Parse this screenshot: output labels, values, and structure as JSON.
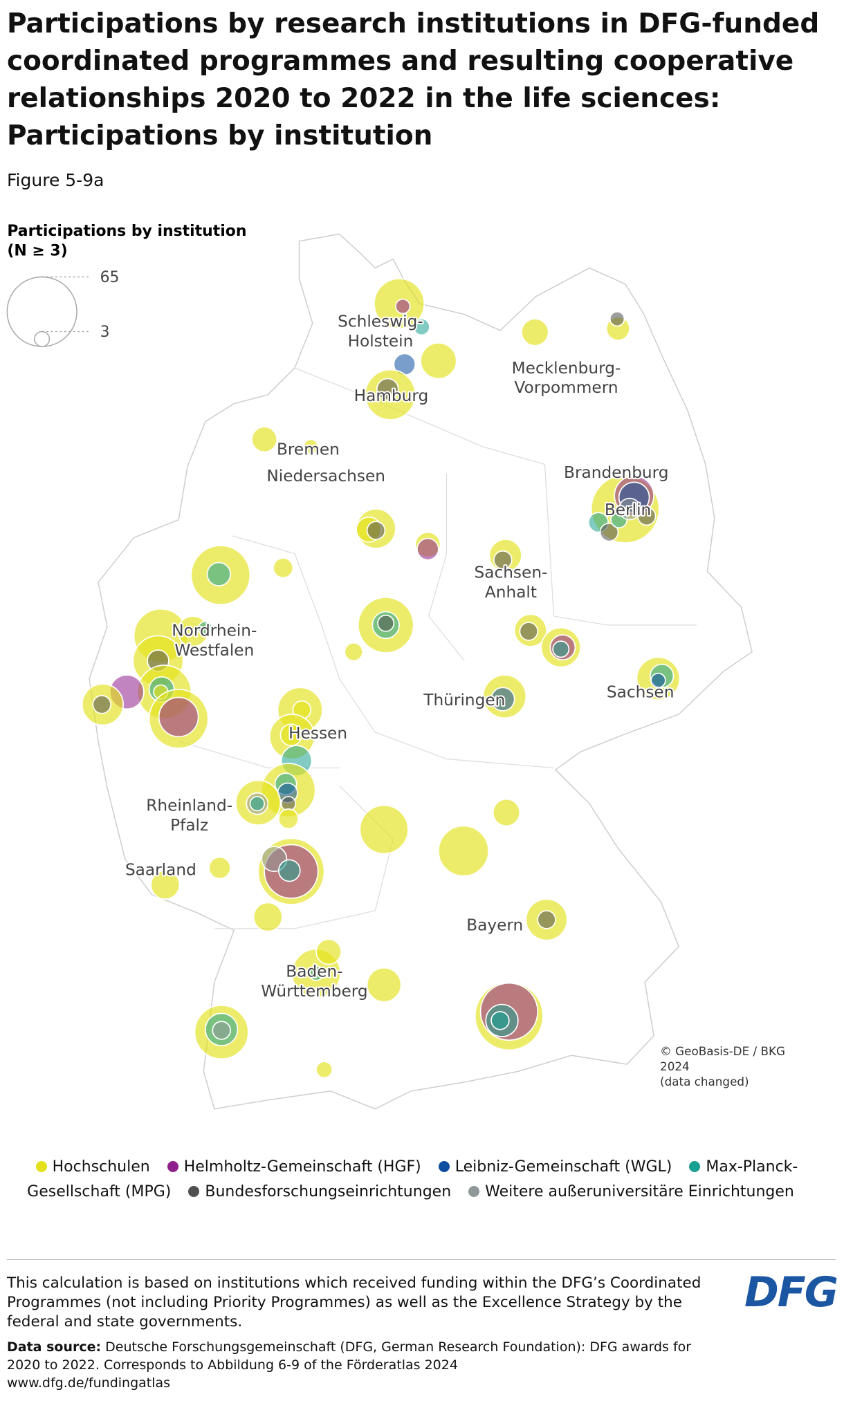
{
  "title": "Participations by research institutions in DFG-funded coordinated programmes and resulting cooperative relationships 2020 to 2022 in the life sciences: Participations by institution",
  "figure": "Figure 5-9a",
  "size_legend": {
    "title": "Participations by institution (N ≥ 3)",
    "max": 65,
    "min": 3
  },
  "regions": [
    "Schleswig-Holstein",
    "Mecklenburg-Vorpommern",
    "Hamburg",
    "Bremen",
    "Niedersachsen",
    "Brandenburg",
    "Berlin",
    "Sachsen-Anhalt",
    "Nordrhein-Westfalen",
    "Thüringen",
    "Sachsen",
    "Hessen",
    "Rheinland-Pfalz",
    "Saarland",
    "Bayern",
    "Baden-Württemberg"
  ],
  "credits": [
    "© GeoBasis-DE / BKG",
    "2024",
    "(data changed)"
  ],
  "legend": [
    {
      "name": "Hochschulen",
      "color": "#e3e21a"
    },
    {
      "name": "Helmholtz-Gemeinschaft (HGF)",
      "color": "#8e1f8c"
    },
    {
      "name": "Leibniz-Gemeinschaft (WGL)",
      "color": "#0d4ea1"
    },
    {
      "name": "Max-Planck-Gesellschaft (MPG)",
      "color": "#19a092"
    },
    {
      "name": "Bundesforschungseinrichtungen",
      "color": "#4f4f4f"
    },
    {
      "name": "Weitere außeruniversitäre Einrichtungen",
      "color": "#8f9898"
    }
  ],
  "note": "This calculation is based on institutions which received funding within the DFG’s Coordinated Programmes (not including Priority Programmes) as well as the Excellence Strategy by the federal and state governments.",
  "source_label": "Data source:",
  "source": "Deutsche Forschungsgemeinschaft (DFG, German Research Foundation): DFG awards for 2020 to 2022. Corresponds to Abbildung 6-9 of the Förderatlas 2024",
  "url": "www.dfg.de/fundingatlas",
  "logo": "DFG"
}
